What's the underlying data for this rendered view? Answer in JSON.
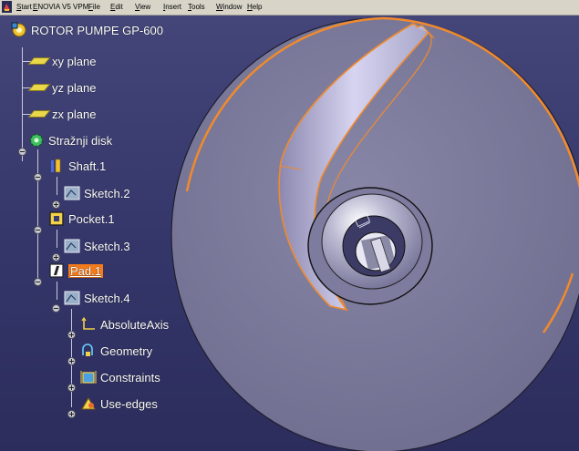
{
  "menubar": {
    "items": [
      "Start",
      "ENOVIA V5 VPM",
      "File",
      "Edit",
      "View",
      "Insert",
      "Tools",
      "Window",
      "Help"
    ]
  },
  "tree": {
    "root": "ROTOR PUMPE GP-600",
    "planes": [
      "xy plane",
      "yz plane",
      "zx plane"
    ],
    "part": "Stražnji disk",
    "features": [
      {
        "name": "Shaft.1",
        "child": "Sketch.2"
      },
      {
        "name": "Pocket.1",
        "child": "Sketch.3"
      },
      {
        "name": "Pad.1",
        "child": "Sketch.4",
        "selected": true
      }
    ],
    "sketch_children": [
      "AbsoluteAxis",
      "Geometry",
      "Constraints",
      "Use-edges"
    ]
  },
  "colors": {
    "background": "#3a3c70",
    "highlight": "#f47a1a",
    "disk": "#7a7898",
    "menubar": "#d8d4c8"
  }
}
